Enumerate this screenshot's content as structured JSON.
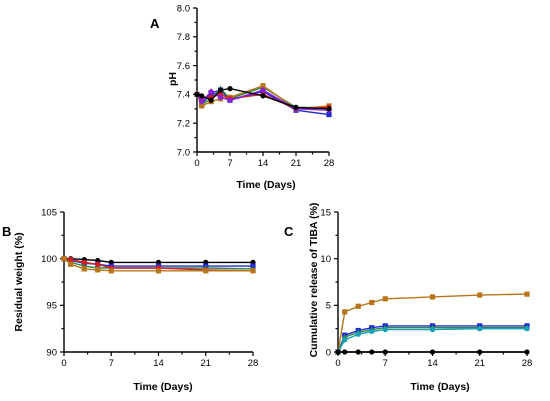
{
  "chart_data": [
    {
      "type": "line",
      "panel": "A",
      "xlabel": "Time (Days)",
      "ylabel": "pH",
      "xlim": [
        0,
        28
      ],
      "ylim": [
        7.0,
        8.0
      ],
      "xticks": [
        "0",
        "7",
        "14",
        "21",
        "28"
      ],
      "yticks": [
        "7.0",
        "7.2",
        "7.4",
        "7.6",
        "7.8",
        "8.0"
      ],
      "x": [
        0,
        1,
        3,
        5,
        7,
        14,
        21,
        28
      ],
      "series": [
        {
          "color": "#1f2ad6",
          "marker": "square",
          "values": [
            7.4,
            7.33,
            7.41,
            7.43,
            7.36,
            7.42,
            7.29,
            7.26
          ]
        },
        {
          "color": "#2e8b3a",
          "marker": "triangle",
          "values": [
            7.4,
            7.33,
            7.37,
            7.44,
            7.37,
            7.45,
            7.31,
            7.31
          ]
        },
        {
          "color": "#b8741a",
          "marker": "square",
          "values": [
            7.4,
            7.32,
            7.35,
            7.37,
            7.38,
            7.46,
            7.3,
            7.32
          ]
        },
        {
          "color": "#d42020",
          "marker": "circle",
          "values": [
            7.4,
            7.37,
            7.38,
            7.4,
            7.37,
            7.4,
            7.3,
            7.31
          ]
        },
        {
          "color": "#8b1fd6",
          "marker": "diamond",
          "values": [
            7.4,
            7.35,
            7.42,
            7.38,
            7.36,
            7.43,
            7.3,
            7.29
          ]
        },
        {
          "color": "#000000",
          "marker": "circle",
          "values": [
            7.4,
            7.39,
            7.36,
            7.43,
            7.44,
            7.39,
            7.31,
            7.3
          ]
        }
      ]
    },
    {
      "type": "line",
      "panel": "B",
      "xlabel": "Time (Days)",
      "ylabel": "Residual weight (%)",
      "xlim": [
        0,
        28
      ],
      "ylim": [
        90,
        105
      ],
      "xticks": [
        "0",
        "7",
        "14",
        "21",
        "28"
      ],
      "yticks": [
        "90",
        "95",
        "100",
        "105"
      ],
      "x": [
        0,
        1,
        3,
        5,
        7,
        14,
        21,
        28
      ],
      "series": [
        {
          "color": "#000000",
          "marker": "circle",
          "values": [
            100,
            100,
            99.9,
            99.8,
            99.6,
            99.6,
            99.6,
            99.6
          ]
        },
        {
          "color": "#1f2ad6",
          "marker": "square",
          "values": [
            100,
            99.8,
            99.5,
            99.4,
            99.2,
            99.2,
            99.2,
            99.2
          ]
        },
        {
          "color": "#2e8b3a",
          "marker": "triangle",
          "values": [
            100,
            99.6,
            99.2,
            99.0,
            99.0,
            99.0,
            99.0,
            98.9
          ]
        },
        {
          "color": "#d42020",
          "marker": "circle",
          "values": [
            100,
            99.9,
            99.6,
            99.4,
            99.0,
            99.0,
            98.8,
            98.7
          ]
        },
        {
          "color": "#b8741a",
          "marker": "square",
          "values": [
            100,
            99.4,
            98.9,
            98.8,
            98.7,
            98.7,
            98.7,
            98.7
          ]
        }
      ]
    },
    {
      "type": "line",
      "panel": "C",
      "xlabel": "Time (Days)",
      "ylabel": "Cumulative release of TIBA (%)",
      "xlim": [
        0,
        28
      ],
      "ylim": [
        0,
        15
      ],
      "xticks": [
        "0",
        "7",
        "14",
        "21",
        "28"
      ],
      "yticks": [
        "0",
        "5",
        "10",
        "15"
      ],
      "x": [
        0,
        1,
        3,
        5,
        7,
        14,
        21,
        28
      ],
      "series": [
        {
          "color": "#b8741a",
          "marker": "square",
          "values": [
            0,
            4.3,
            4.9,
            5.3,
            5.7,
            5.9,
            6.1,
            6.2
          ]
        },
        {
          "color": "#1f2ad6",
          "marker": "square",
          "values": [
            0,
            1.8,
            2.3,
            2.6,
            2.8,
            2.8,
            2.8,
            2.8
          ]
        },
        {
          "color": "#2e8b3a",
          "marker": "triangle",
          "values": [
            0,
            1.6,
            2.1,
            2.4,
            2.6,
            2.6,
            2.6,
            2.6
          ]
        },
        {
          "color": "#17a2b8",
          "marker": "circle",
          "values": [
            0,
            1.3,
            1.9,
            2.2,
            2.4,
            2.4,
            2.5,
            2.5
          ]
        },
        {
          "color": "#000000",
          "marker": "circle",
          "values": [
            0,
            0,
            0,
            0,
            0,
            0,
            0,
            0
          ]
        }
      ]
    }
  ]
}
